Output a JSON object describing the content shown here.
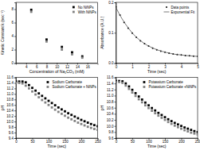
{
  "chart_data": [
    {
      "type": "scatter",
      "x_label": "Concentration of Na₂CO₃ (mM)",
      "y_label": "Kinetic Constant k (sec⁻¹)",
      "x": [
        5,
        8,
        11,
        13,
        15
      ],
      "series": [
        {
          "name": "No NiNPs",
          "color": "#000000",
          "marker": "square",
          "values": [
            7.9,
            3.5,
            2.4,
            1.6,
            1.0
          ]
        },
        {
          "name": "With NiNPs",
          "color": "#808080",
          "marker": "square",
          "values": [
            7.6,
            3.2,
            2.0,
            1.3,
            0.8
          ]
        }
      ],
      "xlim": [
        2,
        18
      ],
      "xticks": [
        4,
        6,
        8,
        10,
        12,
        14,
        16
      ],
      "ylim": [
        0,
        9
      ],
      "yticks": [
        0,
        2,
        4,
        6,
        8
      ],
      "legend": "upper right"
    },
    {
      "type": "line",
      "x_label": "Time (sec)",
      "y_label": "Absorbance (A.U.)",
      "x": [
        0,
        0.25,
        0.5,
        0.75,
        1,
        1.25,
        1.5,
        1.75,
        2,
        2.25,
        2.5,
        2.75,
        3,
        3.25,
        3.5,
        3.75,
        4,
        4.25,
        4.5,
        4.75,
        5
      ],
      "series": [
        {
          "name": "Data points",
          "type": "scatter",
          "color": "#000000",
          "marker": "circle",
          "values": [
            0.185,
            0.158,
            0.134,
            0.115,
            0.099,
            0.085,
            0.073,
            0.064,
            0.056,
            0.049,
            0.044,
            0.039,
            0.036,
            0.033,
            0.03,
            0.028,
            0.027,
            0.025,
            0.024,
            0.023,
            0.022
          ]
        },
        {
          "name": "Exponential Fit",
          "type": "line",
          "color": "#555555",
          "marker": "none",
          "line_style": "solid",
          "values": [
            0.183,
            0.157,
            0.135,
            0.116,
            0.099,
            0.085,
            0.074,
            0.064,
            0.056,
            0.05,
            0.044,
            0.04,
            0.036,
            0.033,
            0.03,
            0.028,
            0.027,
            0.025,
            0.024,
            0.023,
            0.022
          ]
        }
      ],
      "xlim": [
        0,
        5
      ],
      "xticks": [
        0,
        1,
        2,
        3,
        4,
        5
      ],
      "ylim": [
        0,
        0.2
      ],
      "yticks": [
        {
          "value": 0,
          "label": "0.0"
        },
        0.1,
        0.2
      ],
      "legend": "upper right"
    },
    {
      "type": "scatter",
      "x_label": "Time (sec)",
      "y_label": "pH",
      "x": [
        0,
        10,
        20,
        30,
        40,
        50,
        60,
        70,
        80,
        90,
        100,
        110,
        120,
        130,
        140,
        150,
        160,
        170,
        180,
        190,
        200,
        210,
        220,
        230,
        240,
        250
      ],
      "series": [
        {
          "name": "Sodium Carbonate",
          "color": "#000000",
          "marker": "square",
          "values": [
            11.45,
            11.45,
            11.45,
            11.42,
            11.32,
            11.22,
            11.12,
            11.02,
            10.93,
            10.84,
            10.75,
            10.67,
            10.59,
            10.51,
            10.44,
            10.37,
            10.3,
            10.24,
            10.18,
            10.12,
            10.06,
            10.01,
            9.96,
            9.91,
            9.87,
            9.83
          ]
        },
        {
          "name": "Sodium Carbonate + NiNPs",
          "color": "#808080",
          "marker": "square",
          "values": [
            11.4,
            11.4,
            11.38,
            11.3,
            11.2,
            11.09,
            10.98,
            10.88,
            10.78,
            10.69,
            10.6,
            10.51,
            10.43,
            10.35,
            10.28,
            10.21,
            10.14,
            10.08,
            10.02,
            9.96,
            9.91,
            9.86,
            9.81,
            9.77,
            9.73,
            9.7
          ]
        }
      ],
      "xlim": [
        0,
        250
      ],
      "xticks": [
        0,
        50,
        100,
        150,
        200,
        250
      ],
      "ylim": [
        9.4,
        11.6
      ],
      "yticks": [
        9.4,
        9.6,
        9.8,
        {
          "value": 10,
          "label": "10.0"
        },
        10.2,
        10.4,
        10.6,
        10.8,
        {
          "value": 11,
          "label": "11.0"
        },
        11.2,
        11.4,
        11.6
      ],
      "legend": "upper right"
    },
    {
      "type": "scatter",
      "x_label": "Time (sec)",
      "y_label": "pH",
      "x": [
        0,
        10,
        20,
        30,
        40,
        50,
        60,
        70,
        80,
        90,
        100,
        110,
        120,
        130,
        140,
        150,
        160,
        170,
        180,
        190,
        200,
        210,
        220,
        230,
        240,
        250
      ],
      "series": [
        {
          "name": "Potassium Carbonate",
          "color": "#000000",
          "marker": "square",
          "values": [
            11.48,
            11.48,
            11.47,
            11.4,
            11.3,
            11.19,
            11.08,
            10.97,
            10.87,
            10.77,
            10.68,
            10.59,
            10.51,
            10.43,
            10.36,
            10.29,
            10.22,
            10.16,
            10.1,
            10.05,
            10.0,
            9.95,
            9.91,
            9.87,
            9.83,
            9.8
          ]
        },
        {
          "name": "Potassium Carbonate +NiNPs",
          "color": "#808080",
          "marker": "square",
          "values": [
            11.45,
            11.45,
            11.42,
            11.33,
            11.22,
            11.1,
            10.99,
            10.88,
            10.78,
            10.68,
            10.59,
            10.5,
            10.42,
            10.34,
            10.27,
            10.2,
            10.13,
            10.07,
            10.01,
            9.96,
            9.91,
            9.86,
            9.82,
            9.78,
            9.75,
            9.72
          ]
        }
      ],
      "xlim": [
        0,
        250
      ],
      "xticks": [
        0,
        50,
        100,
        150,
        200,
        250
      ],
      "ylim": [
        9.6,
        11.6
      ],
      "yticks": [
        9.6,
        9.8,
        {
          "value": 10,
          "label": "10.0"
        },
        10.2,
        10.4,
        10.6,
        10.8,
        {
          "value": 11,
          "label": "11.0"
        },
        11.2,
        11.4,
        11.6
      ],
      "legend": "upper right"
    }
  ]
}
